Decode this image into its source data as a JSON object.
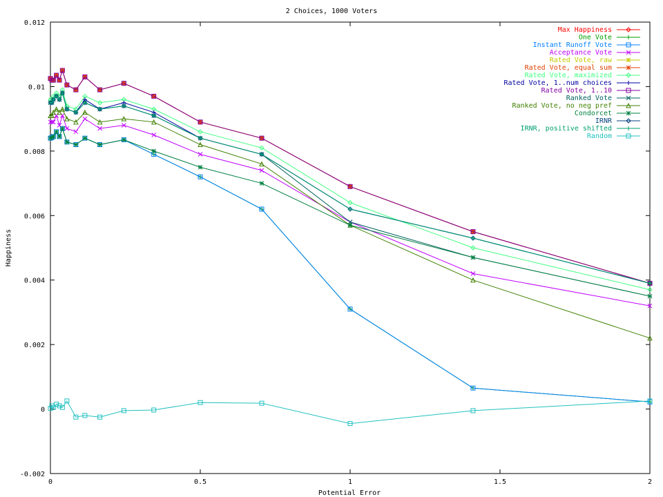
{
  "chart_data": {
    "type": "line",
    "title": "2 Choices, 1000 Voters",
    "xlabel": "Potential Error",
    "ylabel": "Happiness",
    "xlim": [
      0,
      2
    ],
    "ylim": [
      -0.002,
      0.012
    ],
    "xticks": [
      0,
      0.5,
      1,
      1.5,
      2
    ],
    "xtick_labels": [
      "0",
      "0.5",
      "1",
      "1.5",
      "2"
    ],
    "yticks": [
      -0.002,
      0,
      0.002,
      0.004,
      0.006,
      0.008,
      0.01,
      0.012
    ],
    "ytick_labels": [
      "-0.002",
      "0",
      "0.002",
      "0.004",
      "0.006",
      "0.008",
      "0.01",
      "0.012"
    ],
    "grid": false,
    "legend_position": "top-right",
    "x": [
      0,
      0.005,
      0.01,
      0.02,
      0.03,
      0.04,
      0.055,
      0.085,
      0.115,
      0.165,
      0.245,
      0.345,
      0.5,
      0.705,
      1.0,
      1.41,
      2.0
    ],
    "series": [
      {
        "name": "Max Happiness",
        "color": "#ff0000",
        "marker": "diamond",
        "values": [
          0.01025,
          0.0102,
          0.0102,
          0.01035,
          0.0102,
          0.0105,
          0.01005,
          0.0099,
          0.0103,
          0.0099,
          0.0101,
          0.0097,
          0.0089,
          0.0084,
          0.0069,
          0.0055,
          0.0039
        ]
      },
      {
        "name": "One Vote",
        "color": "#00a000",
        "marker": "plus",
        "values": [
          0.0084,
          0.00842,
          0.00845,
          0.0086,
          0.00845,
          0.0087,
          0.00828,
          0.0082,
          0.0084,
          0.0082,
          0.00835,
          0.0079,
          0.0072,
          0.0062,
          0.0031,
          0.00065,
          0.00022
        ]
      },
      {
        "name": "Instant Runoff Vote",
        "color": "#0080ff",
        "marker": "square",
        "values": [
          0.0084,
          0.00842,
          0.00845,
          0.0086,
          0.00845,
          0.0087,
          0.00828,
          0.0082,
          0.0084,
          0.0082,
          0.00835,
          0.0079,
          0.0072,
          0.0062,
          0.0031,
          0.00065,
          0.00022
        ]
      },
      {
        "name": "Acceptance Vote",
        "color": "#c000ff",
        "marker": "x",
        "values": [
          0.0089,
          0.0089,
          0.0089,
          0.0091,
          0.0088,
          0.0091,
          0.0087,
          0.0086,
          0.009,
          0.0087,
          0.0088,
          0.0085,
          0.0079,
          0.0074,
          0.0058,
          0.0042,
          0.0032
        ]
      },
      {
        "name": "Rated Vote, raw",
        "color": "#c8c800",
        "marker": "star",
        "values": [
          0.01025,
          0.0102,
          0.0102,
          0.01035,
          0.0102,
          0.0105,
          0.01005,
          0.0099,
          0.0103,
          0.0099,
          0.0101,
          0.0097,
          0.0089,
          0.0084,
          0.0069,
          0.0055,
          0.0039
        ]
      },
      {
        "name": "Rated Vote, equal sum",
        "color": "#e04000",
        "marker": "star",
        "values": [
          0.01025,
          0.0102,
          0.0102,
          0.01035,
          0.0102,
          0.0105,
          0.01005,
          0.0099,
          0.0103,
          0.0099,
          0.0101,
          0.0097,
          0.0089,
          0.0084,
          0.0069,
          0.0055,
          0.0039
        ]
      },
      {
        "name": "Rated Vote, maximized",
        "color": "#40ff80",
        "marker": "diamond",
        "values": [
          0.0096,
          0.0096,
          0.0097,
          0.0098,
          0.0097,
          0.0099,
          0.0094,
          0.0093,
          0.0097,
          0.0095,
          0.0096,
          0.0093,
          0.0086,
          0.0081,
          0.0064,
          0.005,
          0.0037
        ]
      },
      {
        "name": "Rated Vote, 1..num choices",
        "color": "#0000a0",
        "marker": "plus",
        "values": [
          0.0095,
          0.0095,
          0.0096,
          0.0097,
          0.0096,
          0.0098,
          0.0093,
          0.0092,
          0.0096,
          0.0093,
          0.0095,
          0.0092,
          0.0084,
          0.0079,
          0.0062,
          0.0053,
          0.0039
        ]
      },
      {
        "name": "Rated Vote, 1..10",
        "color": "#8000a0",
        "marker": "square",
        "values": [
          0.01025,
          0.0102,
          0.0102,
          0.01035,
          0.0102,
          0.0105,
          0.01005,
          0.0099,
          0.0103,
          0.0099,
          0.0101,
          0.0097,
          0.0089,
          0.0084,
          0.0069,
          0.0055,
          0.0039
        ]
      },
      {
        "name": "Ranked Vote",
        "color": "#006060",
        "marker": "x",
        "values": [
          0.0095,
          0.0095,
          0.0096,
          0.0097,
          0.0096,
          0.0098,
          0.0093,
          0.0092,
          0.0095,
          0.0093,
          0.0094,
          0.0091,
          0.0084,
          0.0079,
          0.0058,
          0.0047,
          0.0035
        ]
      },
      {
        "name": "Ranked Vote, no neg pref",
        "color": "#408000",
        "marker": "triangle",
        "values": [
          0.0091,
          0.0091,
          0.0092,
          0.0093,
          0.0092,
          0.0093,
          0.009,
          0.0089,
          0.0092,
          0.0089,
          0.009,
          0.0089,
          0.0082,
          0.0076,
          0.0057,
          0.004,
          0.0022
        ]
      },
      {
        "name": "Condorcet",
        "color": "#008040",
        "marker": "star",
        "values": [
          0.0084,
          0.00842,
          0.00845,
          0.0086,
          0.00845,
          0.0087,
          0.00828,
          0.0082,
          0.0084,
          0.0082,
          0.00835,
          0.008,
          0.0075,
          0.007,
          0.0057,
          0.0047,
          0.0035
        ]
      },
      {
        "name": "IRNR",
        "color": "#004080",
        "marker": "diamond",
        "values": [
          0.0095,
          0.0095,
          0.0096,
          0.0097,
          0.0096,
          0.0098,
          0.0093,
          0.0092,
          0.0095,
          0.0093,
          0.0094,
          0.0091,
          0.0084,
          0.0079,
          0.0062,
          0.0053,
          0.0039
        ]
      },
      {
        "name": "IRNR, positive shifted",
        "color": "#00a070",
        "marker": "plus",
        "values": [
          0.0095,
          0.0095,
          0.0096,
          0.0097,
          0.0096,
          0.0098,
          0.0093,
          0.0092,
          0.0095,
          0.0093,
          0.0094,
          0.0091,
          0.0084,
          0.0079,
          0.0062,
          0.0053,
          0.0039
        ]
      },
      {
        "name": "Random",
        "color": "#20c0c0",
        "marker": "square",
        "values": [
          2e-05,
          0.0001,
          5e-05,
          0.00015,
          0.0001,
          5e-05,
          0.00025,
          -0.00025,
          -0.0002,
          -0.00025,
          -5e-05,
          -3e-05,
          0.0002,
          0.00018,
          -0.00045,
          -5e-05,
          0.00025
        ]
      }
    ]
  }
}
